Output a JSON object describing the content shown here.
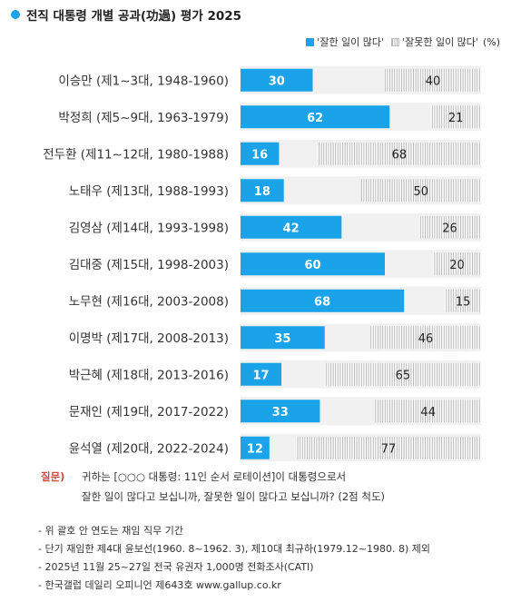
{
  "title": "전직 대통령 개별 공과(功過) 평가 2025",
  "legend": {
    "good": "'잘한 일이 많다'",
    "bad": "'잘못한 일이 많다'",
    "unit": "(%)"
  },
  "colors": {
    "good": "#1aa3e8",
    "bad_stripe": "#b5b5b5",
    "row_band": "#f1f1f1",
    "question": "#d04a3e"
  },
  "chart_data": {
    "type": "bar",
    "stacked": true,
    "orientation": "horizontal",
    "categories": [
      "이승만 (제1~3대, 1948-1960)",
      "박정희 (제5~9대, 1963-1979)",
      "전두환 (제11~12대, 1980-1988)",
      "노태우 (제13대, 1988-1993)",
      "김영삼 (제14대, 1993-1998)",
      "김대중 (제15대, 1998-2003)",
      "노무현 (제16대, 2003-2008)",
      "이명박 (제17대, 2008-2013)",
      "박근혜 (제18대, 2013-2016)",
      "문재인 (제19대, 2017-2022)",
      "윤석열 (제20대, 2022-2024)"
    ],
    "series": [
      {
        "name": "'잘한 일이 많다'",
        "values": [
          30,
          62,
          16,
          18,
          42,
          60,
          68,
          35,
          17,
          33,
          12
        ]
      },
      {
        "name": "'잘못한 일이 많다'",
        "values": [
          40,
          21,
          68,
          50,
          26,
          20,
          15,
          46,
          65,
          44,
          77
        ]
      }
    ],
    "xlim": [
      0,
      100
    ],
    "grid": false,
    "legend_position": "top-right"
  },
  "footer": {
    "question_label": "질문)",
    "question_lines": [
      "귀하는 [○○○ 대통령: 11인 순서 로테이션]이 대통령으로서",
      "잘한 일이 많다고 보십니까, 잘못한 일이 많다고 보십니까? (2점 척도)"
    ],
    "notes": [
      "- 위 괄호 안 연도는 재임 직무 기간",
      "- 단기 재임한 제4대 윤보선(1960. 8~1962. 3), 제10대 최규하(1979.12~1980. 8) 제외",
      "- 2025년 11월 25~27일 전국 유권자 1,000명 전화조사(CATI)",
      "- 한국갤럽 데일리 오피니언 제643호 www.gallup.co.kr"
    ]
  }
}
